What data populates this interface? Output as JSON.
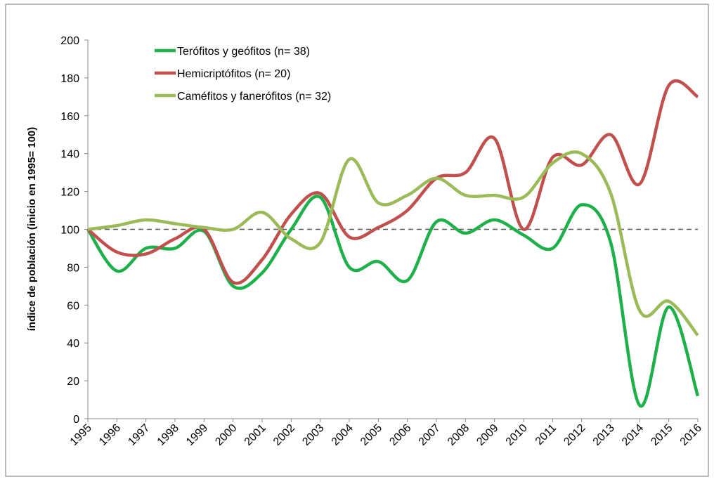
{
  "chart_data": {
    "type": "line",
    "ylabel": "índice de población  (inicio en 1995= 100)",
    "x": [
      1995,
      1996,
      1997,
      1998,
      1999,
      2000,
      2001,
      2002,
      2003,
      2004,
      2005,
      2006,
      2007,
      2008,
      2009,
      2010,
      2011,
      2012,
      2013,
      2014,
      2015,
      2016
    ],
    "xlim": [
      1995,
      2016
    ],
    "ylim": [
      0,
      200
    ],
    "yticks": [
      0,
      20,
      40,
      60,
      80,
      100,
      120,
      140,
      160,
      180,
      200
    ],
    "reference_line": 100,
    "legend": "upper left",
    "series": [
      {
        "name": "Terófitos y geófitos (n= 38)",
        "color": "#1fb04b",
        "values": [
          100,
          78,
          90,
          90,
          99,
          70,
          77,
          100,
          117,
          80,
          83,
          73,
          104,
          98,
          105,
          97,
          90,
          113,
          93,
          7,
          59,
          12
        ]
      },
      {
        "name": "Hemicriptófitos (n= 20)",
        "color": "#c0504d",
        "values": [
          100,
          88,
          87,
          95,
          100,
          72,
          84,
          108,
          119,
          96,
          101,
          110,
          127,
          130,
          148,
          100,
          138,
          134,
          150,
          124,
          176,
          170
        ]
      },
      {
        "name": "Caméfitos y fanerófitos  (n= 32)",
        "color": "#9bbb59",
        "values": [
          100,
          102,
          105,
          103,
          101,
          100,
          109,
          95,
          93,
          137,
          114,
          118,
          127,
          118,
          118,
          117,
          135,
          140,
          119,
          57,
          62,
          44
        ]
      }
    ]
  }
}
